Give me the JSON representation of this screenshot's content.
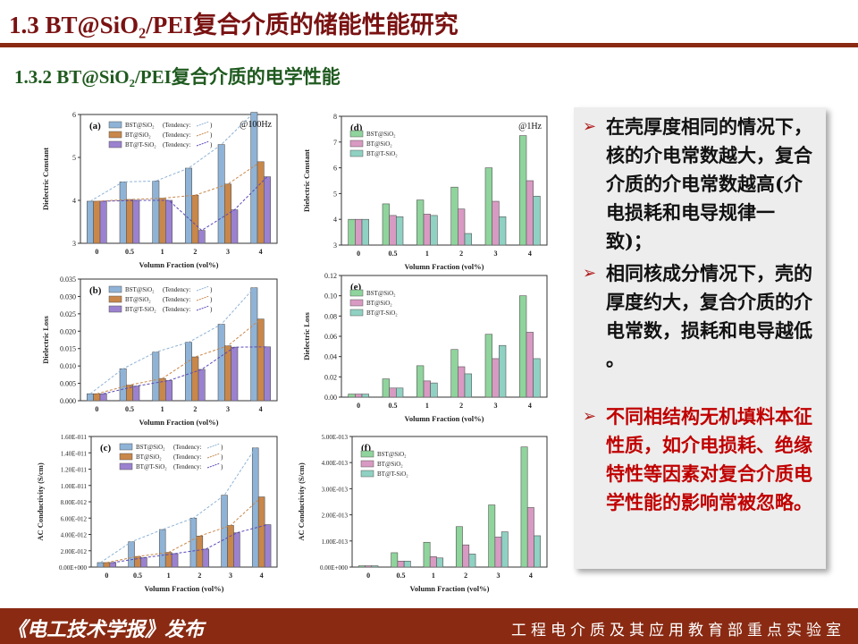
{
  "header": {
    "title": "1.3 BT@SiO₂/PEI复合介质的储能性能研究",
    "subtitle": "1.3.2 BT@SiO₂/PEI复合介质的电学性能"
  },
  "textbox": {
    "bullets": [
      {
        "text": "在壳厚度相同的情况下，核的介电常数越大，复合介质的介电常数越高(介电损耗和电导规律一致)；",
        "color": "black"
      },
      {
        "text": "相同核成分情况下，壳的厚度约大，复合介质的介电常数，损耗和电导越低 。",
        "color": "black"
      },
      {
        "text": "不同相结构无机填料本征性质，如介电损耗、绝缘特性等因素对复合介质电学性能的影响常被忽略。",
        "color": "#c00000"
      }
    ],
    "arrow_icon": "arrow-right-icon"
  },
  "footer": {
    "left": "《电工技术学报》发布",
    "right": "工程电介质及其应用教育部重点实验室"
  },
  "colors": {
    "accent": "#8a2a12",
    "title": "#7a1212",
    "subtitle": "#1f5a1f",
    "blue": "#8fb3d6",
    "orange": "#c9874a",
    "purple": "#9b82d0",
    "green": "#8fd49c",
    "pink": "#d89ac2",
    "teal": "#8fd1c2"
  },
  "chart_data": [
    {
      "panel": "(a)",
      "type": "bar",
      "annotation": "@100Hz",
      "categories": [
        "0",
        "0.5",
        "1",
        "2",
        "3",
        "4"
      ],
      "xlabel": "Volumn Fraction (vol%)",
      "ylabel": "Dielectric Constant",
      "ylim": [
        3,
        6
      ],
      "yticks": [
        3,
        4,
        5,
        6
      ],
      "yticklabels": [
        "3",
        "4",
        "5",
        "6"
      ],
      "series": [
        {
          "name": "BST@SiO₂",
          "tendency": "(Tendency:",
          "values": [
            3.98,
            4.43,
            4.45,
            4.75,
            5.3,
            6.05
          ]
        },
        {
          "name": "BT@SiO₂",
          "tendency": "(Tendency:",
          "values": [
            3.98,
            4.02,
            4.05,
            4.12,
            4.38,
            4.9
          ]
        },
        {
          "name": "BT@T-SiO₂",
          "tendency": "(Tendency:",
          "values": [
            3.98,
            4.0,
            4.0,
            3.3,
            3.78,
            4.55
          ]
        }
      ]
    },
    {
      "panel": "(b)",
      "type": "bar",
      "categories": [
        "0",
        "0.5",
        "1",
        "2",
        "3",
        "4"
      ],
      "xlabel": "Volumn Fraction (vol%)",
      "ylabel": "Dielectric Loss",
      "ylim": [
        0,
        0.035
      ],
      "yticks": [
        0,
        0.005,
        0.01,
        0.015,
        0.02,
        0.025,
        0.03,
        0.035
      ],
      "yticklabels": [
        "0.000",
        "0.005",
        "0.010",
        "0.015",
        "0.020",
        "0.025",
        "0.030",
        "0.035"
      ],
      "series": [
        {
          "name": "BST@SiO₂",
          "tendency": "(Tendency:",
          "values": [
            0.002,
            0.0092,
            0.014,
            0.0168,
            0.022,
            0.0325
          ]
        },
        {
          "name": "BT@SiO₂",
          "tendency": "(Tendency:",
          "values": [
            0.002,
            0.0045,
            0.0064,
            0.0126,
            0.0158,
            0.0235
          ]
        },
        {
          "name": "BT@T-SiO₂",
          "tendency": "(Tendency:",
          "values": [
            0.002,
            0.0042,
            0.0058,
            0.009,
            0.0154,
            0.0155
          ]
        }
      ]
    },
    {
      "panel": "(c)",
      "type": "bar",
      "categories": [
        "0",
        "0.5",
        "1",
        "2",
        "3",
        "4"
      ],
      "xlabel": "Volumn Fraction (vol%)",
      "ylabel": "AC Conductivity (S/cm)",
      "ylim": [
        0,
        1.6e-11
      ],
      "yticks": [
        0,
        2e-12,
        4e-12,
        6e-12,
        8e-12,
        1e-11,
        1.2e-11,
        1.4e-11,
        1.6e-11
      ],
      "yticklabels": [
        "0.00E+000",
        "2.00E-012",
        "4.00E-012",
        "6.00E-012",
        "8.00E-012",
        "1.00E-011",
        "1.20E-011",
        "1.40E-011",
        "1.60E-011"
      ],
      "series": [
        {
          "name": "BST@SiO₂",
          "tendency": "(Tendency:",
          "values": [
            5.5e-13,
            3.1e-12,
            4.6e-12,
            6e-12,
            8.8e-12,
            1.46e-11
          ]
        },
        {
          "name": "BT@SiO₂",
          "tendency": "(Tendency:",
          "values": [
            5.5e-13,
            1.3e-12,
            1.8e-12,
            3.8e-12,
            5.1e-12,
            8.6e-12
          ]
        },
        {
          "name": "BT@T-SiO₂",
          "tendency": "(Tendency:",
          "values": [
            5.5e-13,
            1.15e-12,
            1.65e-12,
            2.2e-12,
            4.2e-12,
            5.2e-12
          ]
        }
      ]
    },
    {
      "panel": "(d)",
      "type": "bar",
      "annotation": "@1Hz",
      "categories": [
        "0",
        "0.5",
        "1",
        "2",
        "3",
        "4"
      ],
      "xlabel": "Volumn Fraction (vol%)",
      "ylabel": "Dielectric Constant",
      "ylim": [
        3,
        8
      ],
      "yticks": [
        3,
        4,
        5,
        6,
        7,
        8
      ],
      "yticklabels": [
        "3",
        "4",
        "5",
        "6",
        "7",
        "8"
      ],
      "series": [
        {
          "name": "BST@SiO₂",
          "values": [
            4.0,
            4.6,
            4.75,
            5.25,
            6.0,
            7.25
          ]
        },
        {
          "name": "BT@SiO₂",
          "values": [
            4.0,
            4.15,
            4.2,
            4.4,
            4.7,
            5.5
          ]
        },
        {
          "name": "BT@T-SiO₂",
          "values": [
            4.0,
            4.1,
            4.15,
            3.45,
            4.1,
            4.9
          ]
        }
      ]
    },
    {
      "panel": "(e)",
      "type": "bar",
      "categories": [
        "0",
        "0.5",
        "1",
        "2",
        "3",
        "4"
      ],
      "xlabel": "Volumn Fraction (vol%)",
      "ylabel": "Dielectric Loss",
      "ylim": [
        0,
        0.12
      ],
      "yticks": [
        0,
        0.02,
        0.04,
        0.06,
        0.08,
        0.1,
        0.12
      ],
      "yticklabels": [
        "0.00",
        "0.02",
        "0.04",
        "0.06",
        "0.08",
        "0.10",
        "0.12"
      ],
      "series": [
        {
          "name": "BST@SiO₂",
          "values": [
            0.003,
            0.018,
            0.031,
            0.047,
            0.062,
            0.1
          ]
        },
        {
          "name": "BT@SiO₂",
          "values": [
            0.003,
            0.009,
            0.016,
            0.03,
            0.038,
            0.064
          ]
        },
        {
          "name": "BT@T-SiO₂",
          "values": [
            0.003,
            0.009,
            0.014,
            0.023,
            0.051,
            0.038
          ]
        }
      ]
    },
    {
      "panel": "(f)",
      "type": "bar",
      "categories": [
        "0",
        "0.5",
        "1",
        "2",
        "3",
        "4"
      ],
      "xlabel": "Volumn Fraction (vol%)",
      "ylabel": "AC Conductivity (S/cm)",
      "ylim": [
        0,
        5e-13
      ],
      "yticks": [
        0,
        1e-13,
        2e-13,
        3e-13,
        4e-13,
        5e-13
      ],
      "yticklabels": [
        "0.00E+000",
        "1.00E-013",
        "2.00E-013",
        "3.00E-013",
        "4.00E-013",
        "5.00E-013"
      ],
      "series": [
        {
          "name": "BST@SiO₂",
          "values": [
            5e-15,
            5.5e-14,
            9.5e-14,
            1.55e-13,
            2.38e-13,
            4.6e-13
          ]
        },
        {
          "name": "BT@SiO₂",
          "values": [
            5e-15,
            2.3e-14,
            4e-14,
            8.5e-14,
            1.15e-13,
            2.28e-13
          ]
        },
        {
          "name": "BT@T-SiO₂",
          "values": [
            5e-15,
            2.3e-14,
            3.5e-14,
            5e-14,
            1.35e-13,
            1.2e-13
          ]
        }
      ]
    }
  ]
}
